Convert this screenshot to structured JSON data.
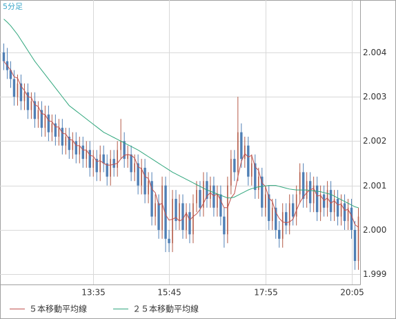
{
  "chart_data": {
    "type": "candlestick",
    "title": "5分足",
    "categories": [
      null,
      null,
      null,
      null,
      null,
      null,
      null,
      null,
      null,
      null,
      null,
      null,
      null,
      null,
      null,
      null,
      null,
      null,
      null,
      null,
      null,
      null,
      null,
      null,
      null,
      null,
      "13:35",
      null,
      null,
      null,
      null,
      null,
      null,
      null,
      null,
      null,
      null,
      null,
      null,
      null,
      null,
      null,
      null,
      null,
      null,
      null,
      null,
      null,
      "15:45",
      null,
      null,
      null,
      null,
      null,
      null,
      null,
      null,
      null,
      null,
      null,
      null,
      null,
      null,
      null,
      null,
      null,
      null,
      null,
      null,
      null,
      null,
      null,
      null,
      null,
      null,
      null,
      "17:55",
      null,
      null,
      null,
      null,
      null,
      null,
      null,
      null,
      null,
      null,
      null,
      null,
      null,
      null,
      null,
      null,
      null,
      null,
      null,
      null,
      null,
      null,
      null,
      null,
      "20:05",
      null,
      null
    ],
    "open": [
      2.004,
      2.0038,
      2.0036,
      2.0034,
      2.003,
      2.0033,
      2.0029,
      2.0031,
      2.0027,
      2.0029,
      2.0025,
      2.0027,
      2.0023,
      2.0026,
      2.0022,
      2.0024,
      2.0021,
      2.0023,
      2.0019,
      2.0021,
      2.0018,
      2.002,
      2.0017,
      2.0019,
      2.0016,
      2.0018,
      2.0014,
      2.0016,
      2.0013,
      2.0017,
      2.0015,
      2.0012,
      2.0016,
      2.0014,
      2.0018,
      2.002,
      2.0016,
      2.0017,
      2.0013,
      2.0015,
      2.001,
      2.0014,
      2.0008,
      2.0011,
      2.0003,
      2.0006,
      2,
      2.001,
      1.9998,
      1.9997,
      2.0007,
      2.0002,
      2.0006,
      2,
      2.0004,
      1.9999,
      2.0006,
      2.0009,
      2.0005,
      2.0011,
      2.0007,
      2.001,
      2.0005,
      2.0008,
      2.0003,
      1.9999,
      2.001,
      2.0016,
      2.0013,
      2.0022,
      2.0016,
      2.0019,
      2.0012,
      2.0015,
      2.0009,
      2.0012,
      2.0005,
      2.0008,
      2.0002,
      2.0005,
      2,
      1.9998,
      2.0004,
      2.0001,
      2.0006,
      2.0003,
      2.0008,
      2.0013,
      2.0007,
      2.0011,
      2.0006,
      2.001,
      2.0004,
      2.0008,
      2.0005,
      2.0009,
      2.0004,
      2.0007,
      2.0003,
      2.0006,
      2.0002,
      2.0005,
      2,
      1.9993
    ],
    "high": [
      2.0042,
      2.0041,
      2.0038,
      2.0036,
      2.0035,
      2.0035,
      2.0033,
      2.0033,
      2.0031,
      2.0031,
      2.0029,
      2.0029,
      2.0028,
      2.0028,
      2.0026,
      2.0026,
      2.0025,
      2.0025,
      2.0023,
      2.0023,
      2.0022,
      2.0022,
      2.0021,
      2.0021,
      2.002,
      2.002,
      2.0018,
      2.0018,
      2.0019,
      2.0019,
      2.0017,
      2.0018,
      2.0018,
      2.002,
      2.0025,
      2.0022,
      2.0019,
      2.0019,
      2.0017,
      2.0017,
      2.0016,
      2.0016,
      2.0013,
      2.0013,
      2.0008,
      2.0008,
      2.0012,
      2.0012,
      2,
      2.0009,
      2.0009,
      2.0008,
      2.0008,
      2.0006,
      2.0006,
      2.0008,
      2.0011,
      2.0011,
      2.0013,
      2.0013,
      2.0012,
      2.0012,
      2.001,
      2.001,
      2.0005,
      2.0012,
      2.0018,
      2.0018,
      2.003,
      2.0024,
      2.0021,
      2.0021,
      2.0017,
      2.0017,
      2.0014,
      2.0014,
      2.001,
      2.001,
      2.0007,
      2.0007,
      2.0002,
      2.0006,
      2.0006,
      2.0008,
      2.0008,
      2.001,
      2.0015,
      2.0015,
      2.0013,
      2.0013,
      2.0012,
      2.0012,
      2.001,
      2.001,
      2.0011,
      2.0011,
      2.0009,
      2.0009,
      2.0008,
      2.0008,
      2.0007,
      2.0007,
      2.0002,
      2.0005
    ],
    "low": [
      2.0036,
      2.0034,
      2.0032,
      2.0028,
      2.0028,
      2.0027,
      2.0027,
      2.0025,
      2.0025,
      2.0023,
      2.0023,
      2.0021,
      2.0021,
      2.002,
      2.002,
      2.0019,
      2.0019,
      2.0017,
      2.0017,
      2.0016,
      2.0016,
      2.0015,
      2.0015,
      2.0014,
      2.0014,
      2.0012,
      2.0012,
      2.0011,
      2.0011,
      2.0013,
      2.001,
      2.001,
      2.0012,
      2.0012,
      2.0016,
      2.0014,
      2.0014,
      2.0011,
      2.0011,
      2.0008,
      2.0008,
      2.0006,
      2.0006,
      2.0001,
      2.0001,
      1.9998,
      1.9998,
      1.9995,
      1.9995,
      1.9995,
      2,
      2,
      1.9998,
      1.9998,
      1.9997,
      1.9997,
      2.0004,
      2.0003,
      2.0003,
      2.0005,
      2.0005,
      2.0003,
      2.0003,
      2.0001,
      1.9996,
      1.9997,
      2.0008,
      2.0011,
      2.0011,
      2.0014,
      2.0014,
      2.001,
      2.001,
      2.0007,
      2.0007,
      2.0003,
      2.0003,
      2,
      2,
      1.9998,
      1.9996,
      1.9996,
      1.9999,
      1.9999,
      2.0001,
      2.0001,
      2.0006,
      2.0005,
      2.0005,
      2.0004,
      2.0004,
      2.0002,
      2.0002,
      2.0003,
      2.0003,
      2.0002,
      2.0002,
      2.0001,
      2.0001,
      2,
      2,
      1.9998,
      1.9991,
      1.9991
    ],
    "close": [
      2.0038,
      2.0036,
      2.0034,
      2.003,
      2.0033,
      2.0029,
      2.0031,
      2.0027,
      2.0029,
      2.0025,
      2.0027,
      2.0023,
      2.0026,
      2.0022,
      2.0024,
      2.0021,
      2.0023,
      2.0019,
      2.0021,
      2.0018,
      2.002,
      2.0017,
      2.0019,
      2.0016,
      2.0018,
      2.0014,
      2.0016,
      2.0013,
      2.0017,
      2.0015,
      2.0012,
      2.0016,
      2.0014,
      2.0018,
      2.002,
      2.0016,
      2.0017,
      2.0013,
      2.0015,
      2.001,
      2.0014,
      2.0008,
      2.0011,
      2.0003,
      2.0006,
      2,
      2.001,
      1.9998,
      1.9997,
      2.0007,
      2.0002,
      2.0006,
      2,
      2.0004,
      1.9999,
      2.0006,
      2.0009,
      2.0005,
      2.0011,
      2.0007,
      2.001,
      2.0005,
      2.0008,
      2.0003,
      1.9999,
      2.001,
      2.0016,
      2.0013,
      2.0022,
      2.0016,
      2.0019,
      2.0012,
      2.0015,
      2.0009,
      2.0012,
      2.0005,
      2.0008,
      2.0002,
      2.0005,
      2,
      1.9998,
      2.0004,
      2.0001,
      2.0006,
      2.0003,
      2.0008,
      2.0013,
      2.0007,
      2.0011,
      2.0006,
      2.001,
      2.0004,
      2.0008,
      2.0005,
      2.0009,
      2.0004,
      2.0007,
      2.0003,
      2.0006,
      2.0002,
      2.0005,
      2,
      1.9993,
      2.0003
    ],
    "up_color": "#b45a46",
    "down_color": "#4f7fb5",
    "series": [
      {
        "name": "５本移動平均線",
        "color": "#c0504d",
        "values": [
          2.0038,
          2.0037,
          2.0036,
          2.00345,
          2.00342,
          2.00324,
          2.00314,
          2.003,
          2.00298,
          2.00282,
          2.00278,
          2.00262,
          2.0026,
          2.00246,
          2.00244,
          2.00232,
          2.00232,
          2.00218,
          2.00216,
          2.00204,
          2.00202,
          2.0019,
          2.0019,
          2.0018,
          2.0018,
          2.00168,
          2.00166,
          2.00154,
          2.00156,
          2.0015,
          2.00146,
          2.00146,
          2.00148,
          2.0015,
          2.0016,
          2.00168,
          2.0017,
          2.00168,
          2.00162,
          2.00142,
          2.00138,
          2.0012,
          2.00116,
          2.00092,
          2.00084,
          2.00056,
          2.0006,
          2.00034,
          2.00022,
          2.00024,
          2.00028,
          2.0002,
          2.00024,
          2.00038,
          2.00022,
          2.0003,
          2.00036,
          2.00046,
          2.0006,
          2.00076,
          2.00084,
          2.00076,
          2.00082,
          2.00066,
          2.0005,
          2.0005,
          2.00072,
          2.00082,
          2.0012,
          2.00154,
          2.00172,
          2.00164,
          2.00168,
          2.00142,
          2.00134,
          2.00106,
          2.00098,
          2.00072,
          2.00064,
          2.0004,
          2.00026,
          2.00018,
          2.00016,
          2.00018,
          2.00024,
          2.00044,
          2.00062,
          2.00074,
          2.00084,
          2.0009,
          2.00094,
          2.00076,
          2.00078,
          2.00066,
          2.00072,
          2.0006,
          2.00066,
          2.00056,
          2.00058,
          2.00044,
          2.00046,
          2.00032,
          2.00012,
          2.00006
        ]
      },
      {
        "name": "２５本移動平均線",
        "color": "#2fa67c",
        "values": [
          2.00475,
          2.00468,
          2.0046,
          2.0045,
          2.0044,
          2.00428,
          2.00416,
          2.00404,
          2.00392,
          2.0038,
          2.0037,
          2.0036,
          2.0035,
          2.0034,
          2.0033,
          2.0032,
          2.0031,
          2.003,
          2.0029,
          2.0028,
          2.00274,
          2.00268,
          2.00262,
          2.00256,
          2.0025,
          2.00244,
          2.00238,
          2.00232,
          2.00226,
          2.0022,
          2.00216,
          2.00212,
          2.00208,
          2.00204,
          2.002,
          2.00196,
          2.00192,
          2.00188,
          2.00184,
          2.0018,
          2.00175,
          2.0017,
          2.00165,
          2.0016,
          2.00155,
          2.0015,
          2.00145,
          2.0014,
          2.00135,
          2.0013,
          2.00126,
          2.00122,
          2.00118,
          2.00114,
          2.0011,
          2.00106,
          2.00102,
          2.00098,
          2.00094,
          2.0009,
          2.00087,
          2.00084,
          2.00081,
          2.00078,
          2.00075,
          2.00072,
          2.00072,
          2.00074,
          2.00078,
          2.00082,
          2.00086,
          2.0009,
          2.00093,
          2.00095,
          2.00097,
          2.00098,
          2.00099,
          2.001,
          2.001,
          2.001,
          2.00098,
          2.00096,
          2.00094,
          2.00092,
          2.00091,
          2.0009,
          2.0009,
          2.0009,
          2.0009,
          2.00089,
          2.00088,
          2.00087,
          2.00086,
          2.00084,
          2.00082,
          2.0008,
          2.00076,
          2.00072,
          2.00068,
          2.00064,
          2.0006,
          2.00056,
          2.00052,
          2.0005
        ]
      }
    ],
    "ylim": [
      1.99877,
      2.00518
    ],
    "yticks": [
      1.999,
      {
        "value": 2,
        "label": "2.000"
      },
      2.001,
      2.002,
      2.003,
      2.004
    ],
    "grid": true
  }
}
